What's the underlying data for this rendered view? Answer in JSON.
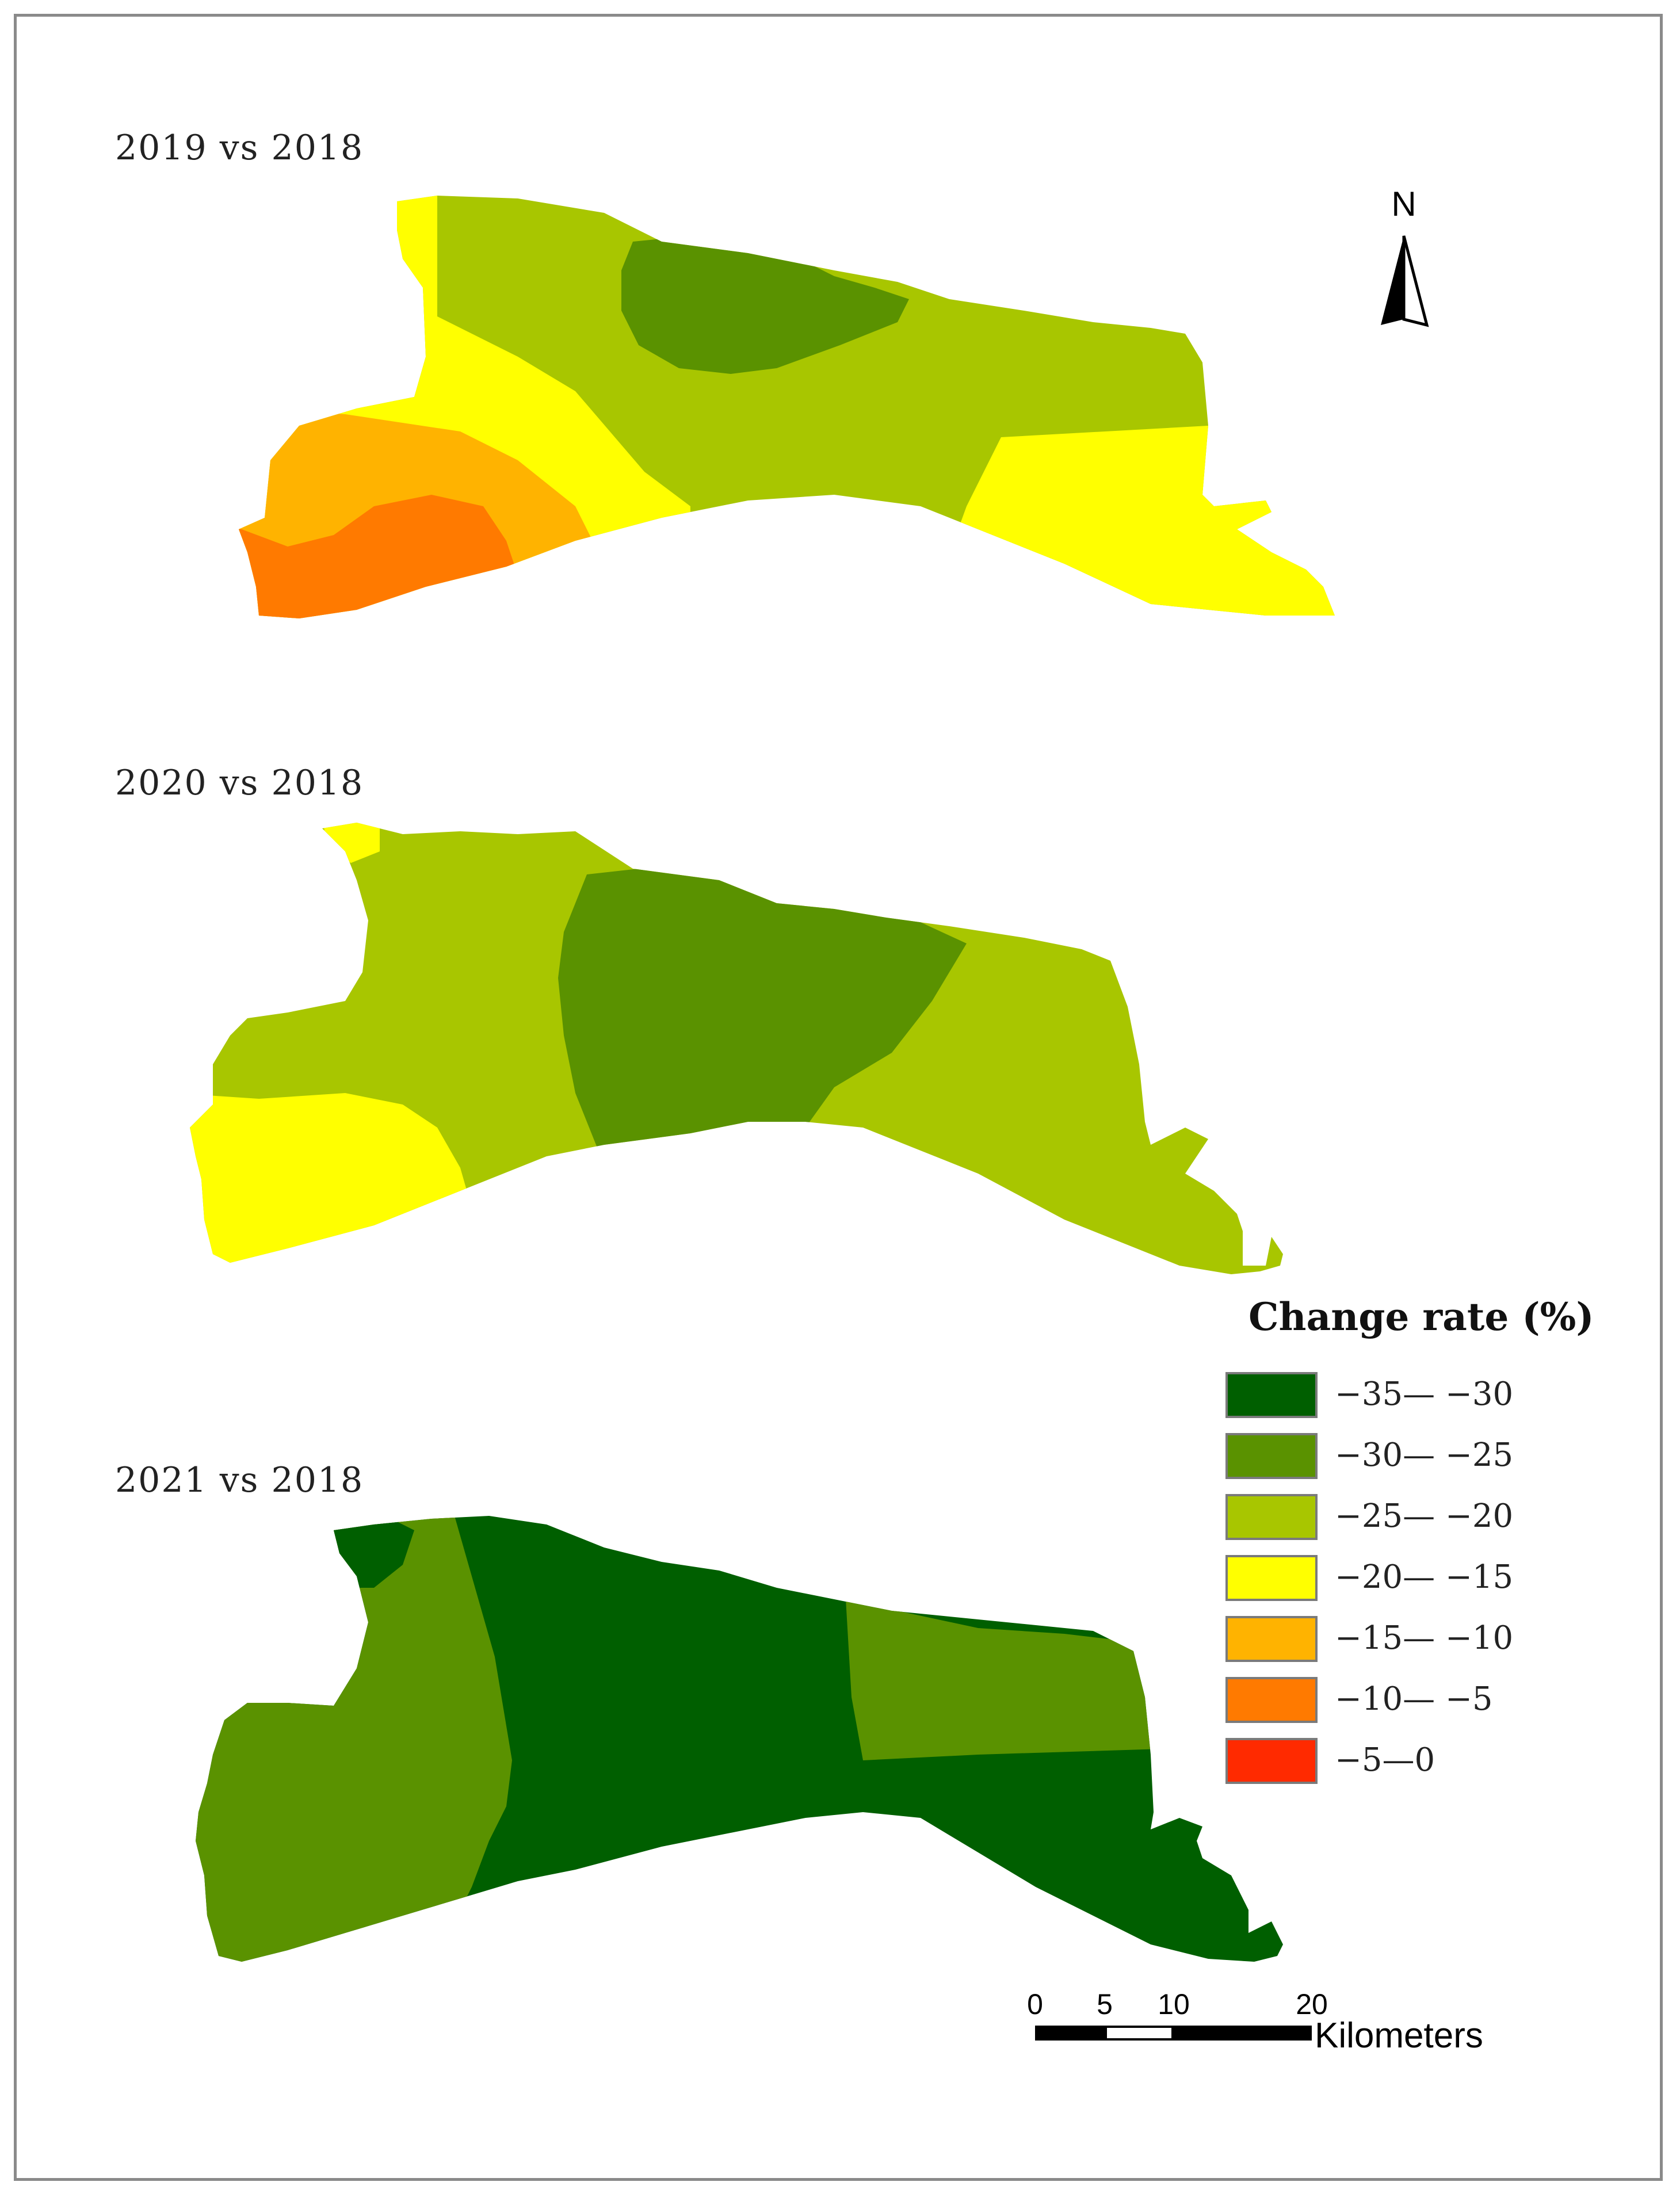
{
  "panels": [
    {
      "label": "2019 vs 2018"
    },
    {
      "label": "2020 vs 2018"
    },
    {
      "label": "2021 vs 2018"
    }
  ],
  "north_arrow": {
    "letter": "N"
  },
  "legend": {
    "title": "Change rate (%)",
    "classes": [
      {
        "label": "−35— −30",
        "color": "#005f00"
      },
      {
        "label": "−30— −25",
        "color": "#5a9200"
      },
      {
        "label": "−25— −20",
        "color": "#a8c600"
      },
      {
        "label": "−20— −15",
        "color": "#ffff00"
      },
      {
        "label": "−15— −10",
        "color": "#ffb300"
      },
      {
        "label": "−10— −5",
        "color": "#ff7a00"
      },
      {
        "label": "−5—0",
        "color": "#ff2a00"
      }
    ]
  },
  "scale_bar": {
    "ticks": [
      "0",
      "5",
      "10",
      "20"
    ],
    "unit": "Kilometers"
  }
}
